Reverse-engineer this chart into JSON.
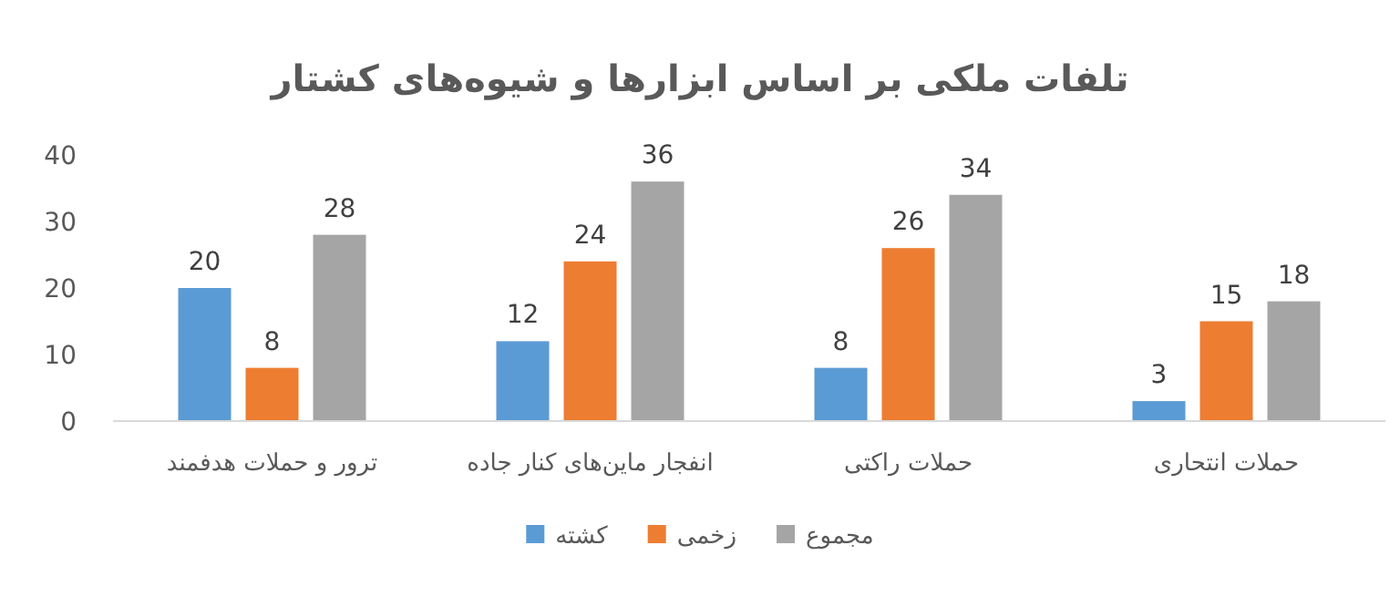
{
  "chart_data": {
    "type": "bar",
    "title": "تلفات ملکی بر اساس ابزارها و شیوه‌های کشتار",
    "categories": [
      "ترور و حملات هدفمند",
      "انفجار ماین‌های کنار جاده",
      "حملات راکتی",
      "حملات انتحاری"
    ],
    "series": [
      {
        "name": "کشته",
        "color": "#5b9bd5",
        "values": [
          20,
          12,
          8,
          3
        ]
      },
      {
        "name": "زخمی",
        "color": "#ed7d31",
        "values": [
          8,
          24,
          26,
          15
        ]
      },
      {
        "name": "مجموع",
        "color": "#a5a5a5",
        "values": [
          28,
          36,
          34,
          18
        ]
      }
    ],
    "ylim": [
      0,
      40
    ],
    "yticks": [
      0,
      10,
      20,
      30,
      40
    ],
    "grid": false,
    "legend": "bottom",
    "data_labels": true
  }
}
